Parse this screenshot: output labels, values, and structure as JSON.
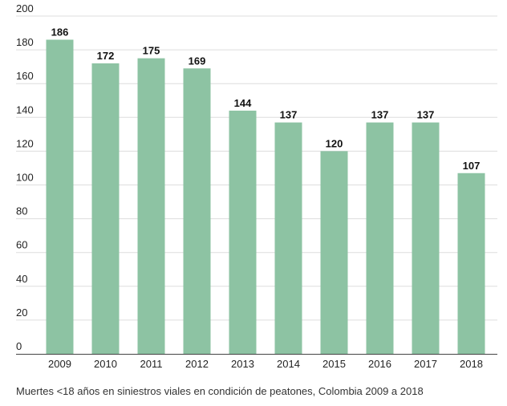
{
  "chart_data": {
    "type": "bar",
    "categories": [
      "2009",
      "2010",
      "2011",
      "2012",
      "2013",
      "2014",
      "2015",
      "2016",
      "2017",
      "2018"
    ],
    "values": [
      186,
      172,
      175,
      169,
      144,
      137,
      120,
      137,
      137,
      107
    ],
    "title": "",
    "caption": "Muertes <18 años en siniestros viales en condición de peatones, Colombia 2009 a 2018",
    "xlabel": "",
    "ylabel": "",
    "ylim": [
      0,
      200
    ],
    "yticks": [
      0,
      20,
      40,
      60,
      80,
      100,
      120,
      140,
      160,
      180,
      200
    ],
    "grid": true,
    "legend": "none",
    "data_labels": true,
    "colors": {
      "bar": "#8dc3a3",
      "grid": "#dddddd",
      "axis": "#444444"
    }
  }
}
